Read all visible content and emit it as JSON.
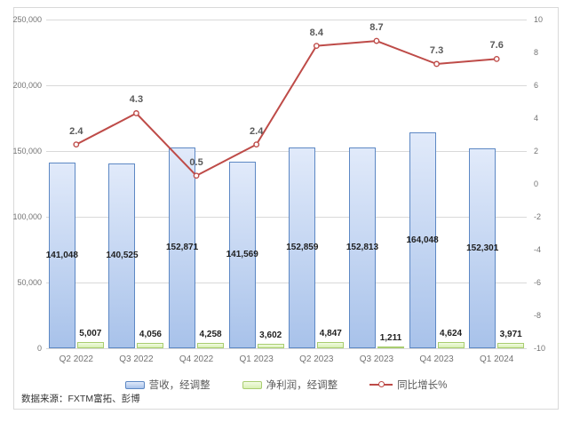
{
  "chart_data": {
    "type": "bar",
    "subtype": "clustered-bar-with-line-combo-dual-axis",
    "categories": [
      "Q2 2022",
      "Q3 2022",
      "Q4 2022",
      "Q1 2023",
      "Q2 2023",
      "Q3 2023",
      "Q4 2023",
      "Q1 2024"
    ],
    "series": [
      {
        "name": "营收，经调整",
        "type": "bar",
        "axis": "left",
        "values": [
          141048,
          140525,
          152871,
          141569,
          152859,
          152813,
          164048,
          152301
        ],
        "labels": [
          "141,048",
          "140,525",
          "152,871",
          "141,569",
          "152,859",
          "152,813",
          "164,048",
          "152,301"
        ]
      },
      {
        "name": "净利润，经调整",
        "type": "bar",
        "axis": "left",
        "values": [
          5007,
          4056,
          4258,
          3602,
          4847,
          1211,
          4624,
          3971
        ],
        "labels": [
          "5,007",
          "4,056",
          "4,258",
          "3,602",
          "4,847",
          "1,211",
          "4,624",
          "3,971"
        ]
      },
      {
        "name": "同比增长%",
        "type": "line",
        "axis": "right",
        "values": [
          2.4,
          4.3,
          0.5,
          2.4,
          8.4,
          8.7,
          7.3,
          7.6
        ],
        "labels": [
          "2.4",
          "4.3",
          "0.5",
          "2.4",
          "8.4",
          "8.7",
          "7.3",
          "7.6"
        ]
      }
    ],
    "left_axis": {
      "min": 0,
      "max": 250000,
      "tick_step": 50000,
      "tick_labels": [
        "250,000",
        "200,000",
        "150,000",
        "100,000",
        "50,000",
        "0"
      ]
    },
    "right_axis": {
      "min": -10,
      "max": 10,
      "tick_step": 2,
      "tick_labels": [
        "10",
        "8",
        "6",
        "4",
        "2",
        "0",
        "-2",
        "-4",
        "-6",
        "-8",
        "-10"
      ]
    },
    "legend_position": "bottom",
    "grid": "horizontal gridlines at left-axis ticks only"
  },
  "source_note": "数据来源：FXTM富拓、彭博",
  "colors": {
    "revenue_fill_top": "#e1eafa",
    "revenue_fill_bottom": "#a8c2ea",
    "revenue_border": "#5d88c4",
    "profit_fill_top": "#f2fbe3",
    "profit_fill_bottom": "#d9f0b4",
    "profit_border": "#a9cd70",
    "growth_line": "#be4b48",
    "grid": "#d9d9d9",
    "axis_text": "#737373",
    "bar_label": "#1f1f1f",
    "line_label": "#595959"
  }
}
